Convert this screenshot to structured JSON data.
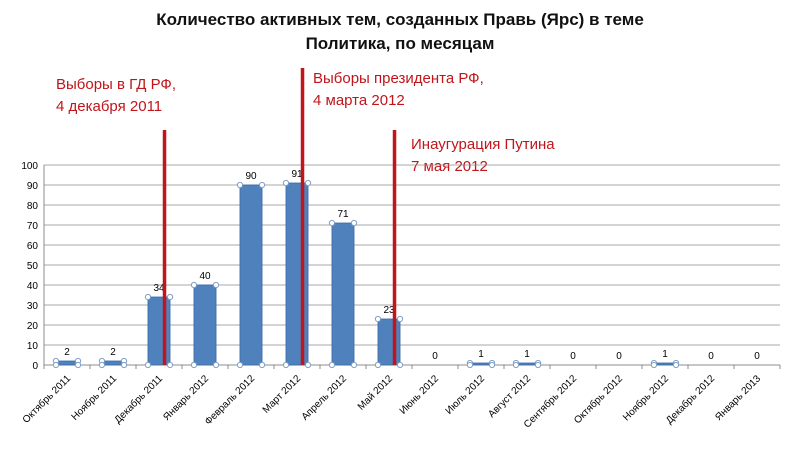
{
  "chart_data": {
    "type": "bar",
    "title_lines": [
      "Количество активных тем, созданных  Правь (Ярс) в теме",
      "Политика, по месяцам"
    ],
    "xlabel": "",
    "ylabel": "",
    "ylim": [
      0,
      100
    ],
    "yticks": [
      0,
      10,
      20,
      30,
      40,
      50,
      60,
      70,
      80,
      90,
      100
    ],
    "grid": true,
    "legend": "none",
    "bar_color": "#4f81bd",
    "categories": [
      "Октябрь 2011",
      "Ноябрь 2011",
      "Декабрь 2011",
      "Январь 2012",
      "Февраль 2012",
      "Март 2012",
      "Апрель 2012",
      "Май 2012",
      "Июнь 2012",
      "Июль 2012",
      "Август 2012",
      "Сентябрь 2012",
      "Октябрь 2012",
      "Ноябрь 2012",
      "Декабрь 2012",
      "Январь 2013"
    ],
    "values": [
      2,
      2,
      34,
      40,
      90,
      91,
      71,
      23,
      0,
      1,
      1,
      0,
      0,
      1,
      0,
      0
    ],
    "event_line_color": "#c0151b",
    "events": [
      {
        "category": "Декабрь 2011",
        "lines": [
          "Выборы в ГД РФ,",
          "4 декабря 2011"
        ]
      },
      {
        "category": "Март 2012",
        "lines": [
          "Выборы президента РФ,",
          "4 марта 2012"
        ]
      },
      {
        "category": "Май 2012",
        "lines": [
          "Инаугурация Путина",
          "7 мая 2012"
        ]
      }
    ]
  }
}
